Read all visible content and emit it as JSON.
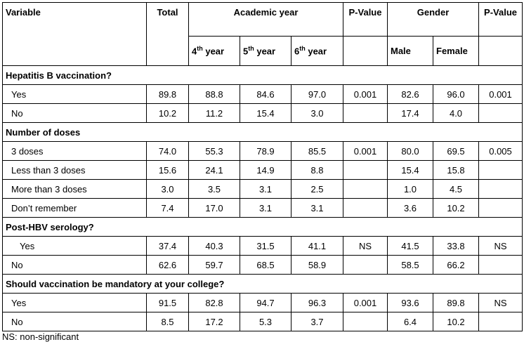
{
  "headers": {
    "variable": "Variable",
    "total": "Total",
    "academic_year": "Academic year",
    "pvalue": "P-Value",
    "gender": "Gender",
    "pvalue2": "P-Value",
    "y4_num": "4",
    "y4_sup": "th",
    "y4_txt": " year",
    "y5_num": "5",
    "y5_sup": "th",
    "y5_txt": " year",
    "y6_num": "6",
    "y6_sup": "th",
    "y6_txt": " year",
    "male": "Male",
    "female": "Female"
  },
  "sections": [
    {
      "title": "Hepatitis B vaccination?",
      "rows": [
        {
          "label": "Yes",
          "total": "89.8",
          "y4": "88.8",
          "y5": "84.6",
          "y6": "97.0",
          "p1": "0.001",
          "male": "82.6",
          "female": "96.0",
          "p2": "0.001"
        },
        {
          "label": "No",
          "total": "10.2",
          "y4": "11.2",
          "y5": "15.4",
          "y6": "3.0",
          "p1": "",
          "male": "17.4",
          "female": "4.0",
          "p2": ""
        }
      ]
    },
    {
      "title": "Number of doses",
      "rows": [
        {
          "label": "3 doses",
          "total": "74.0",
          "y4": "55.3",
          "y5": "78.9",
          "y6": "85.5",
          "p1": "0.001",
          "male": "80.0",
          "female": "69.5",
          "p2": "0.005"
        },
        {
          "label": "Less than 3 doses",
          "total": "15.6",
          "y4": "24.1",
          "y5": "14.9",
          "y6": "8.8",
          "p1": "",
          "male": "15.4",
          "female": "15.8",
          "p2": ""
        },
        {
          "label": "More than 3 doses",
          "total": "3.0",
          "y4": "3.5",
          "y5": "3.1",
          "y6": "2.5",
          "p1": "",
          "male": "1.0",
          "female": "4.5",
          "p2": ""
        },
        {
          "label": "Don’t remember",
          "total": "7.4",
          "y4": "17.0",
          "y5": "3.1",
          "y6": "3.1",
          "p1": "",
          "male": "3.6",
          "female": "10.2",
          "p2": ""
        }
      ]
    },
    {
      "title": "Post-HBV serology?",
      "rows": [
        {
          "label": "Yes",
          "total": "37.4",
          "y4": "40.3",
          "y5": "31.5",
          "y6": "41.1",
          "p1": "NS",
          "male": "41.5",
          "female": "33.8",
          "p2": "NS"
        },
        {
          "label": "No",
          "total": "62.6",
          "y4": "59.7",
          "y5": "68.5",
          "y6": "58.9",
          "p1": "",
          "male": "58.5",
          "female": "66.2",
          "p2": ""
        }
      ]
    },
    {
      "title": "Should vaccination be mandatory at your college?",
      "rows": [
        {
          "label": "Yes",
          "total": "91.5",
          "y4": "82.8",
          "y5": "94.7",
          "y6": "96.3",
          "p1": "0.001",
          "male": "93.6",
          "female": "89.8",
          "p2": "NS"
        },
        {
          "label": "No",
          "total": "8.5",
          "y4": "17.2",
          "y5": "5.3",
          "y6": "3.7",
          "p1": "",
          "male": "6.4",
          "female": "10.2",
          "p2": ""
        }
      ]
    }
  ],
  "footnote": "NS: non-significant"
}
